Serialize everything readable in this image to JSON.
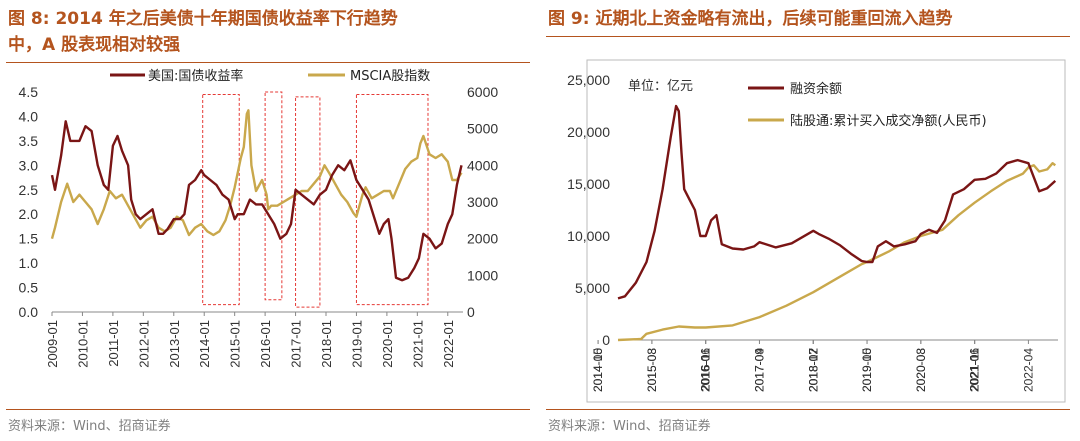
{
  "source": "资料来源：Wind、招商证券",
  "colors": {
    "title": "#b4541e",
    "treasury": "#7a1515",
    "msci": "#c9a84c",
    "box": "#e53935",
    "margin": "#7a1515",
    "northbound": "#c9a84c"
  },
  "figure8": {
    "title_line1": "图 8:  2014 年之后美债十年期国债收益率下行趋势",
    "title_line2": "中，A 股表现相对较强"
  },
  "figure9": {
    "title": "图 9:  近期北上资金略有流出，后续可能重回流入趋势"
  },
  "chart_data": [
    {
      "type": "line",
      "title": "",
      "dual_axis": true,
      "x_ticks": [
        "2009-01",
        "2010-01",
        "2011-01",
        "2012-01",
        "2013-01",
        "2014-01",
        "2015-01",
        "2016-01",
        "2017-01",
        "2018-01",
        "2019-01",
        "2020-01",
        "2021-01",
        "2022-01"
      ],
      "x_range": [
        2009.0,
        2022.5
      ],
      "y_left": {
        "ticks": [
          "0.0",
          "0.5",
          "1.0",
          "1.5",
          "2.0",
          "2.5",
          "3.0",
          "3.5",
          "4.0",
          "4.5"
        ],
        "range": [
          0,
          4.5
        ]
      },
      "y_right": {
        "ticks": [
          "0",
          "1000",
          "2000",
          "3000",
          "4000",
          "5000",
          "6000"
        ],
        "range": [
          0,
          6000
        ]
      },
      "legend_position": "top",
      "series": [
        {
          "name": "美国:国债收益率",
          "axis": "left",
          "x": [
            2009.0,
            2009.1,
            2009.3,
            2009.45,
            2009.6,
            2009.75,
            2009.9,
            2010.1,
            2010.3,
            2010.5,
            2010.7,
            2010.85,
            2011.0,
            2011.15,
            2011.3,
            2011.5,
            2011.6,
            2011.75,
            2011.9,
            2012.1,
            2012.3,
            2012.5,
            2012.65,
            2012.8,
            2013.0,
            2013.2,
            2013.35,
            2013.5,
            2013.7,
            2013.9,
            2014.0,
            2014.2,
            2014.4,
            2014.6,
            2014.8,
            2015.0,
            2015.1,
            2015.3,
            2015.5,
            2015.7,
            2015.9,
            2016.1,
            2016.3,
            2016.5,
            2016.7,
            2016.85,
            2017.0,
            2017.2,
            2017.4,
            2017.6,
            2017.8,
            2018.0,
            2018.2,
            2018.4,
            2018.6,
            2018.8,
            2019.0,
            2019.2,
            2019.4,
            2019.6,
            2019.75,
            2019.9,
            2020.05,
            2020.15,
            2020.3,
            2020.5,
            2020.7,
            2020.9,
            2021.05,
            2021.2,
            2021.4,
            2021.6,
            2021.8,
            2022.0,
            2022.15,
            2022.3,
            2022.45
          ],
          "y": [
            2.8,
            2.5,
            3.2,
            3.9,
            3.5,
            3.5,
            3.5,
            3.8,
            3.7,
            3.0,
            2.6,
            2.5,
            3.4,
            3.6,
            3.3,
            3.0,
            2.3,
            2.0,
            1.9,
            2.0,
            2.1,
            1.6,
            1.6,
            1.7,
            1.9,
            1.9,
            2.0,
            2.6,
            2.7,
            2.9,
            2.8,
            2.7,
            2.6,
            2.4,
            2.3,
            1.9,
            2.0,
            2.0,
            2.3,
            2.2,
            2.2,
            2.0,
            1.8,
            1.5,
            1.6,
            1.8,
            2.5,
            2.4,
            2.3,
            2.2,
            2.4,
            2.5,
            2.8,
            3.0,
            2.9,
            3.1,
            2.7,
            2.5,
            2.3,
            1.9,
            1.6,
            1.8,
            1.9,
            1.5,
            0.7,
            0.65,
            0.7,
            0.9,
            1.1,
            1.6,
            1.5,
            1.3,
            1.4,
            1.8,
            2.0,
            2.6,
            3.0
          ]
        },
        {
          "name": "MSCIA股指数",
          "axis": "right",
          "x": [
            2009.0,
            2009.1,
            2009.3,
            2009.5,
            2009.7,
            2009.9,
            2010.1,
            2010.3,
            2010.5,
            2010.7,
            2010.9,
            2011.1,
            2011.3,
            2011.5,
            2011.7,
            2011.9,
            2012.1,
            2012.3,
            2012.5,
            2012.7,
            2012.9,
            2013.1,
            2013.3,
            2013.5,
            2013.7,
            2013.9,
            2014.1,
            2014.3,
            2014.5,
            2014.7,
            2014.85,
            2015.0,
            2015.2,
            2015.3,
            2015.4,
            2015.45,
            2015.55,
            2015.7,
            2015.9,
            2016.05,
            2016.1,
            2016.2,
            2016.4,
            2016.6,
            2016.8,
            2017.0,
            2017.2,
            2017.4,
            2017.6,
            2017.8,
            2017.95,
            2018.1,
            2018.3,
            2018.5,
            2018.7,
            2018.9,
            2019.0,
            2019.2,
            2019.3,
            2019.5,
            2019.7,
            2019.9,
            2020.1,
            2020.2,
            2020.4,
            2020.6,
            2020.8,
            2021.0,
            2021.1,
            2021.2,
            2021.4,
            2021.6,
            2021.8,
            2022.0,
            2022.15,
            2022.3,
            2022.45
          ],
          "y": [
            2000,
            2300,
            3000,
            3500,
            3000,
            3200,
            3000,
            2800,
            2400,
            2800,
            3300,
            3100,
            3200,
            2900,
            2600,
            2300,
            2500,
            2600,
            2300,
            2200,
            2300,
            2600,
            2500,
            2100,
            2300,
            2400,
            2200,
            2100,
            2200,
            2500,
            2900,
            3400,
            4200,
            4500,
            5400,
            5500,
            4000,
            3300,
            3600,
            3200,
            2800,
            2900,
            2900,
            3000,
            3100,
            3200,
            3300,
            3300,
            3500,
            3700,
            4000,
            3800,
            3500,
            3200,
            3000,
            2700,
            2600,
            3200,
            3400,
            3100,
            3200,
            3300,
            3300,
            3100,
            3500,
            3900,
            4100,
            4200,
            4600,
            4800,
            4300,
            4200,
            4300,
            4100,
            3600,
            3600,
            3800
          ]
        }
      ],
      "annotations": [
        {
          "type": "dashed-box",
          "x_from": 2013.95,
          "x_to": 2015.15,
          "y_left_from": 0.15,
          "y_left_to": 4.45
        },
        {
          "type": "dashed-box",
          "x_from": 2016.0,
          "x_to": 2016.55,
          "y_left_from": 0.25,
          "y_left_to": 4.5
        },
        {
          "type": "dashed-box",
          "x_from": 2017.0,
          "x_to": 2017.8,
          "y_left_from": 0.1,
          "y_left_to": 4.4
        },
        {
          "type": "dashed-box",
          "x_from": 2019.0,
          "x_to": 2021.35,
          "y_left_from": 0.15,
          "y_left_to": 4.45
        }
      ]
    },
    {
      "type": "line",
      "title": "",
      "unit_note": "单位：亿元",
      "x_ticks": [
        "2014-05",
        "2014-10",
        "2015-03",
        "2015-08",
        "2016-01",
        "2016-06",
        "2016-11",
        "2017-04",
        "2017-09",
        "2018-02",
        "2018-07",
        "2018-12",
        "2019-05",
        "2019-10",
        "2020-03",
        "2020-08",
        "2021-01",
        "2021-06",
        "2021-11",
        "2022-04"
      ],
      "x_range": [
        2014.37,
        2022.55
      ],
      "y": {
        "ticks": [
          "0",
          "5,000",
          "10,000",
          "15,000",
          "20,000",
          "25,000"
        ],
        "range": [
          0,
          25000
        ]
      },
      "legend_position": "top-right",
      "series": [
        {
          "name": "融资余额",
          "x": [
            2014.37,
            2014.5,
            2014.7,
            2014.9,
            2015.05,
            2015.2,
            2015.35,
            2015.45,
            2015.5,
            2015.55,
            2015.6,
            2015.7,
            2015.8,
            2015.9,
            2016.0,
            2016.1,
            2016.2,
            2016.3,
            2016.5,
            2016.7,
            2016.9,
            2017.0,
            2017.3,
            2017.6,
            2017.9,
            2018.0,
            2018.1,
            2018.3,
            2018.5,
            2018.7,
            2018.9,
            2019.0,
            2019.1,
            2019.2,
            2019.35,
            2019.5,
            2019.7,
            2019.9,
            2020.0,
            2020.15,
            2020.3,
            2020.45,
            2020.6,
            2020.8,
            2021.0,
            2021.2,
            2021.4,
            2021.6,
            2021.8,
            2022.0,
            2022.2,
            2022.35,
            2022.5
          ],
          "y": [
            4000,
            4200,
            5500,
            7500,
            10500,
            14500,
            19500,
            22500,
            22000,
            18000,
            14500,
            13500,
            12500,
            10000,
            10000,
            11500,
            12000,
            9200,
            8800,
            8700,
            9000,
            9400,
            8900,
            9300,
            10200,
            10500,
            10200,
            9700,
            9100,
            8300,
            7600,
            7500,
            7500,
            9000,
            9500,
            9000,
            9200,
            9500,
            10200,
            10600,
            10300,
            11500,
            14000,
            14500,
            15400,
            15500,
            16000,
            17000,
            17300,
            17000,
            14300,
            14600,
            15300
          ]
        },
        {
          "name": "陆股通:累计买入成交净额(人民币)",
          "x": [
            2014.37,
            2014.8,
            2014.9,
            2015.2,
            2015.5,
            2015.8,
            2016.0,
            2016.5,
            2017.0,
            2017.5,
            2018.0,
            2018.5,
            2018.9,
            2019.0,
            2019.4,
            2019.7,
            2020.0,
            2020.2,
            2020.4,
            2020.7,
            2021.0,
            2021.3,
            2021.6,
            2021.9,
            2022.0,
            2022.1,
            2022.2,
            2022.35,
            2022.45,
            2022.5
          ],
          "y": [
            0,
            100,
            600,
            1000,
            1300,
            1200,
            1200,
            1400,
            2200,
            3300,
            4600,
            6100,
            7300,
            7500,
            8500,
            9400,
            10000,
            10300,
            10600,
            12000,
            13200,
            14300,
            15300,
            16000,
            16600,
            16800,
            16200,
            16400,
            17000,
            16800
          ]
        }
      ]
    }
  ]
}
